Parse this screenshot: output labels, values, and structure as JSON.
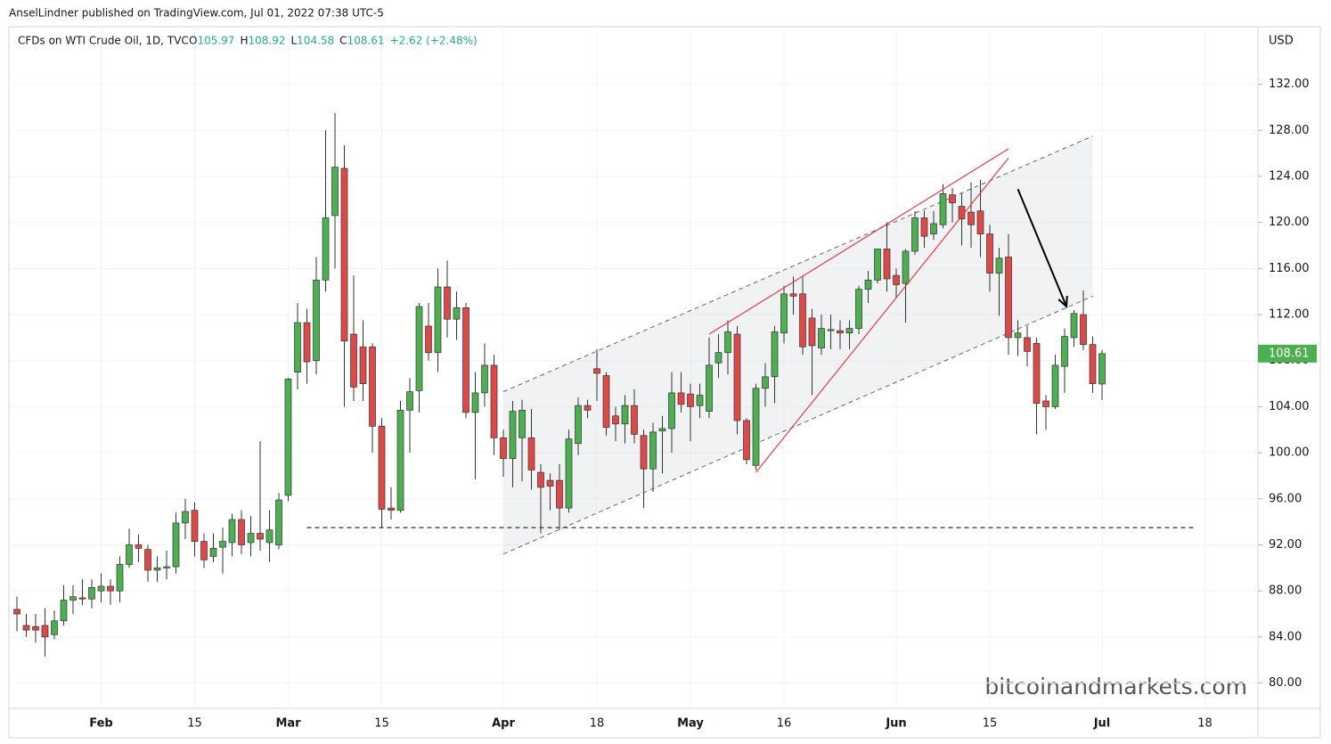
{
  "header": {
    "publisher": "AnselLindner published on TradingView.com, Jul 01, 2022 07:38 UTC-5"
  },
  "watermark": "bitcoinandmarkets.com",
  "chart_data": {
    "type": "candlestick",
    "title": "CFDs on WTI Crude Oil, 1D, TVC",
    "ohlc_prefixes": [
      "O",
      "H",
      "L",
      "C"
    ],
    "change_label": "+2.62 (+2.48%)",
    "currency": "USD",
    "up_color": "#4caf50",
    "down_color": "#e04848",
    "categories": [
      null,
      null,
      null,
      null,
      null,
      null,
      null,
      null,
      null,
      "Feb",
      null,
      null,
      null,
      null,
      null,
      null,
      null,
      null,
      null,
      "15",
      null,
      null,
      null,
      null,
      null,
      null,
      null,
      null,
      null,
      "Mar",
      null,
      null,
      null,
      null,
      null,
      null,
      null,
      null,
      null,
      "15",
      null,
      null,
      null,
      null,
      null,
      null,
      null,
      null,
      null,
      null,
      null,
      null,
      "Apr",
      null,
      null,
      null,
      null,
      null,
      null,
      null,
      null,
      null,
      "18",
      null,
      null,
      null,
      null,
      null,
      null,
      null,
      null,
      null,
      "May",
      null,
      null,
      null,
      null,
      null,
      null,
      null,
      null,
      null,
      "16",
      null,
      null,
      null,
      null,
      null,
      null,
      null,
      null,
      null,
      null,
      null,
      "Jun",
      null,
      null,
      null,
      null,
      null,
      null,
      null,
      null,
      null,
      "15",
      null,
      null,
      null,
      null,
      null,
      null,
      null,
      null,
      null,
      null,
      null,
      "Jul",
      null,
      null,
      null,
      null,
      null,
      null,
      null,
      null,
      null,
      null,
      "18"
    ],
    "open": [
      86.4,
      85.0,
      84.9,
      85.0,
      84.2,
      85.4,
      87.2,
      87.4,
      87.3,
      88.0,
      88.4,
      88.0,
      90.3,
      92.0,
      91.6,
      89.8,
      90.0,
      90.1,
      93.9,
      95.0,
      92.3,
      91.0,
      91.8,
      92.2,
      94.2,
      92.2,
      93.0,
      92.2,
      92.0,
      96.3,
      107.0,
      111.3,
      108.0,
      115.0,
      120.6,
      124.7,
      110.3,
      109.2,
      109.2,
      102.3,
      95.2,
      95.0,
      103.7,
      105.4,
      111.0,
      108.7,
      114.4,
      111.6,
      112.6,
      103.5,
      105.2,
      107.6,
      101.3,
      99.5,
      101.3,
      101.3,
      98.3,
      97.6,
      97.6,
      95.2,
      100.8,
      104.1,
      107.3,
      106.7,
      103.2,
      102.5,
      104.1,
      101.5,
      98.6,
      101.9,
      102.1,
      105.2,
      105.1,
      104.1,
      103.6,
      107.8,
      108.7,
      110.3,
      102.8,
      98.9,
      105.6,
      106.6,
      110.4,
      113.8,
      113.8,
      111.7,
      109.1,
      110.6,
      110.6,
      110.4,
      110.8,
      114.2,
      115.0,
      117.7,
      115.4,
      114.7,
      117.5,
      120.4,
      119.0,
      119.8,
      122.4,
      121.4,
      120.9,
      121.0,
      119.0,
      115.6,
      117.0,
      110.0,
      110.0,
      109.5,
      104.5,
      104.0,
      107.5,
      110.0,
      112.0,
      109.4,
      105.97,
      null,
      null,
      null,
      null,
      null,
      null,
      null,
      null,
      null,
      null,
      null
    ],
    "high": [
      87.5,
      86,
      86,
      86.5,
      86.3,
      88.5,
      88.5,
      89,
      89,
      89.5,
      89,
      91,
      93.4,
      92.9,
      92,
      91,
      91.5,
      94.8,
      96,
      95.7,
      93,
      93,
      93.5,
      94.7,
      95,
      94.5,
      101,
      95,
      96.5,
      106.5,
      113,
      112.5,
      117,
      128,
      129.5,
      126.7,
      115.4,
      111.5,
      109.5,
      103,
      97,
      104.5,
      106.5,
      113,
      113,
      116,
      116.7,
      114,
      113,
      107,
      109.5,
      108.5,
      102,
      104.5,
      104.6,
      103.8,
      99,
      98.2,
      99,
      102,
      104.8,
      104.6,
      109,
      107,
      104,
      105,
      105.5,
      102,
      102.6,
      103.2,
      107,
      107,
      106,
      106,
      110,
      110.3,
      111.5,
      111,
      103,
      106,
      107.8,
      111,
      114.5,
      115.3,
      115.3,
      112.5,
      112,
      112,
      111.5,
      111.5,
      114.5,
      115.8,
      117.7,
      120,
      116,
      117.7,
      121,
      121,
      121,
      123.3,
      123,
      122.5,
      123.5,
      123.7,
      119.8,
      117.8,
      119,
      111.5,
      111,
      110,
      105,
      108.5,
      110.8,
      112.4,
      114.1,
      110.1,
      108.92,
      null,
      null,
      null,
      null,
      null,
      null,
      null,
      null,
      null,
      null,
      null
    ],
    "low": [
      84.5,
      84,
      83.5,
      82.3,
      83.8,
      85,
      86,
      86.8,
      86.5,
      87,
      86.8,
      87,
      90,
      90.5,
      88.8,
      88.8,
      89,
      89.5,
      92.5,
      91,
      90,
      90.5,
      89.5,
      91,
      91.2,
      91,
      91.5,
      90.5,
      91.6,
      95.8,
      105.5,
      106,
      106.8,
      114,
      116,
      104,
      104.5,
      104.5,
      100,
      93.5,
      94.2,
      94.8,
      100,
      103.5,
      108,
      107,
      110,
      109.8,
      103,
      97.7,
      104,
      99.8,
      97.9,
      97,
      97.5,
      96.8,
      93,
      95,
      93.3,
      94.8,
      99.8,
      103,
      104.5,
      101.5,
      101,
      100.8,
      100.8,
      95.2,
      96.6,
      98.2,
      100,
      103.5,
      101,
      103,
      103,
      106.5,
      106.8,
      101.6,
      99,
      98.5,
      104,
      104.3,
      109.5,
      112,
      108.5,
      105,
      108.5,
      109,
      109,
      109,
      110.3,
      113,
      114.7,
      114,
      113.5,
      111.3,
      117.2,
      117.8,
      118.5,
      119.5,
      120,
      118,
      117.8,
      117,
      114,
      111.9,
      108.5,
      108.4,
      107.5,
      101.6,
      102,
      103.8,
      105.2,
      109.2,
      108.9,
      105.2,
      104.58,
      null,
      null,
      null,
      null,
      null,
      null,
      null,
      null,
      null,
      null,
      null
    ],
    "close": [
      86.0,
      84.6,
      84.6,
      84.0,
      85.4,
      87.2,
      87.5,
      87.3,
      88.3,
      88.4,
      88.0,
      90.3,
      92.0,
      91.7,
      89.8,
      90.0,
      90.1,
      93.9,
      94.9,
      92.3,
      90.7,
      91.7,
      92.3,
      94.2,
      92.0,
      93.0,
      92.5,
      93.3,
      95.9,
      106.4,
      111.3,
      107.9,
      115.0,
      120.4,
      124.8,
      109.7,
      105.7,
      106.0,
      102.3,
      95.1,
      95.0,
      103.7,
      105.3,
      112.7,
      108.7,
      114.4,
      111.6,
      112.6,
      103.5,
      105.2,
      107.6,
      101.3,
      99.5,
      103.6,
      103.7,
      98.5,
      97.0,
      97.1,
      95.2,
      101.2,
      104.1,
      103.7,
      106.9,
      102.2,
      102.5,
      104.1,
      101.6,
      98.6,
      101.8,
      102.1,
      105.2,
      104.2,
      104.0,
      105.0,
      107.6,
      108.7,
      110.5,
      102.8,
      99.4,
      105.6,
      106.6,
      110.5,
      113.8,
      113.6,
      109.2,
      109.3,
      110.8,
      110.7,
      110.4,
      110.8,
      114.2,
      115.0,
      117.7,
      115.1,
      114.6,
      117.5,
      120.4,
      118.8,
      119.9,
      122.5,
      121.7,
      120.3,
      119.8,
      119.0,
      115.6,
      116.9,
      110.0,
      110.4,
      108.8,
      104.3,
      104.0,
      107.6,
      110.1,
      112.1,
      109.4,
      106.0,
      108.61,
      null,
      null,
      null,
      null,
      null,
      null,
      null,
      null,
      null,
      null,
      null
    ],
    "ylim": [
      77.8,
      137.0
    ],
    "yticks": [
      {
        "value": 80,
        "label": "80.00"
      },
      {
        "value": 84,
        "label": "84.00"
      },
      {
        "value": 88,
        "label": "88.00"
      },
      {
        "value": 92,
        "label": "92.00"
      },
      {
        "value": 96,
        "label": "96.00"
      },
      {
        "value": 100,
        "label": "100.00"
      },
      {
        "value": 104,
        "label": "104.00"
      },
      {
        "value": 108,
        "label": "108.00"
      },
      {
        "value": 112,
        "label": "112.00"
      },
      {
        "value": 116,
        "label": "116.00"
      },
      {
        "value": 120,
        "label": "120.00"
      },
      {
        "value": 124,
        "label": "124.00"
      },
      {
        "value": 128,
        "label": "128.00"
      },
      {
        "value": 132,
        "label": "132.00"
      }
    ],
    "grid": true,
    "channel": {
      "upper": {
        "x": [
          52,
          115
        ],
        "y": [
          105.3,
          127.5
        ]
      },
      "lower": {
        "x": [
          52,
          115
        ],
        "y": [
          91.2,
          113.6
        ]
      }
    },
    "trend_lines": [
      {
        "x": [
          74,
          106
        ],
        "y": [
          110.3,
          126.4
        ],
        "color": "#f23645"
      },
      {
        "x": [
          79,
          106
        ],
        "y": [
          98.3,
          125.6
        ],
        "color": "#f23645"
      }
    ],
    "support_line": {
      "x": [
        31,
        126
      ],
      "y": 93.5
    },
    "arrow": {
      "x": [
        107,
        112.2
      ],
      "y": [
        122.9,
        112.7
      ]
    }
  }
}
